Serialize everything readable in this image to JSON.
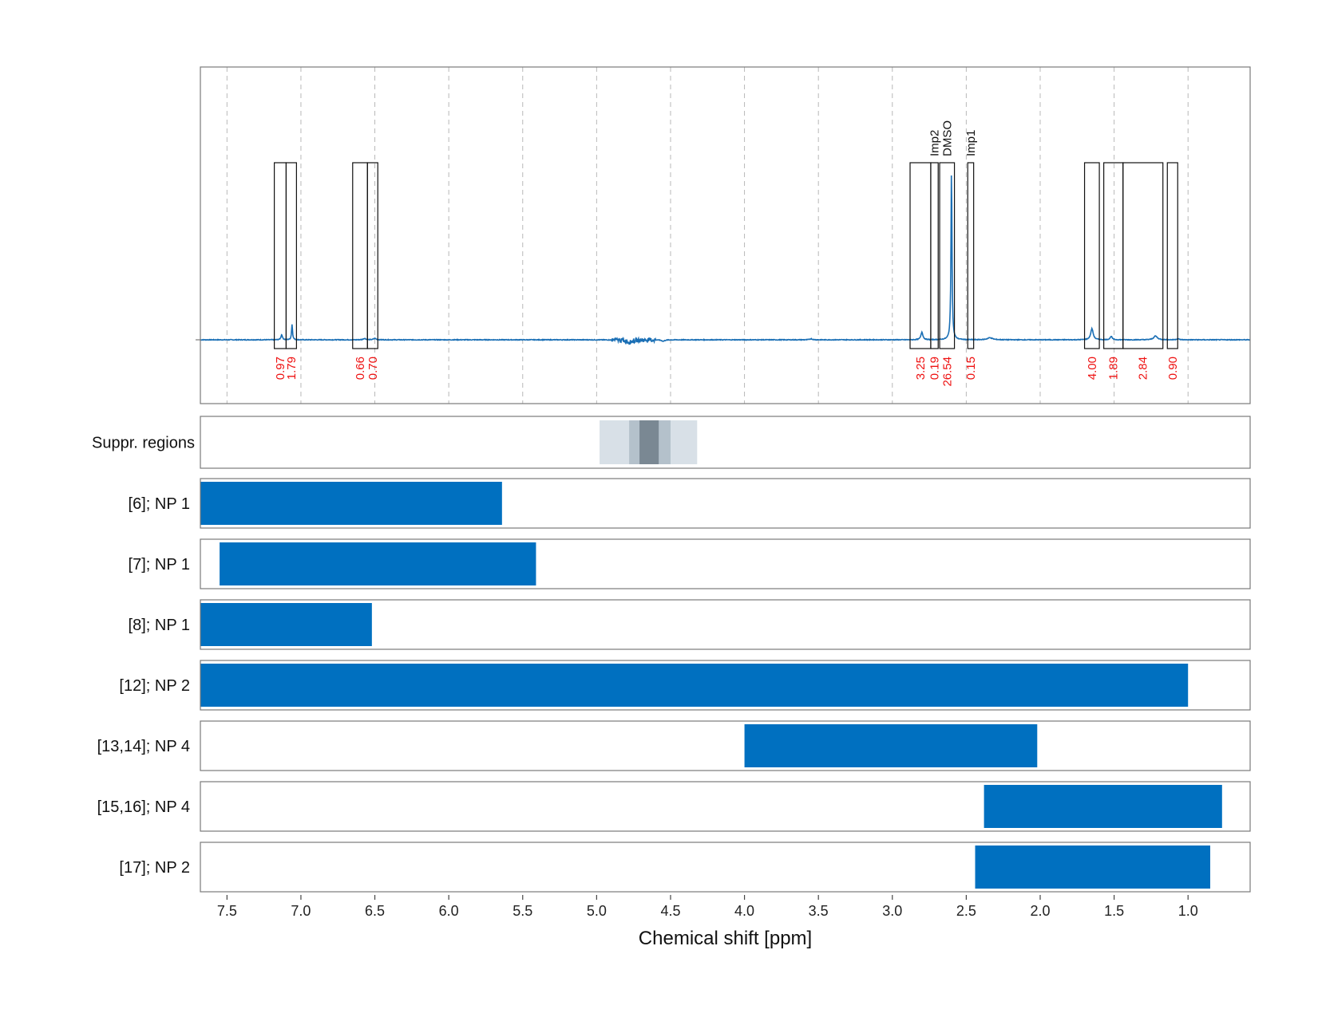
{
  "chart_data": {
    "type": "line",
    "xlabel": "Chemical shift [ppm]",
    "xlim": [
      7.68,
      0.58
    ],
    "x_reversed": true,
    "x_ticks": [
      7.5,
      7.0,
      6.5,
      6.0,
      5.5,
      5.0,
      4.5,
      4.0,
      3.5,
      3.0,
      2.5,
      2.0,
      1.5,
      1.0
    ],
    "x_tick_labels": [
      "7.5",
      "7.0",
      "6.5",
      "6.0",
      "5.5",
      "5.0",
      "4.5",
      "4.0",
      "3.5",
      "3.0",
      "2.5",
      "2.0",
      "1.5",
      "1.0"
    ],
    "grid": true,
    "spectrum": {
      "baseline": 0,
      "peaks": [
        {
          "ppm": 7.13,
          "height": 0.03,
          "width": 0.006
        },
        {
          "ppm": 7.06,
          "height": 0.09,
          "width": 0.004
        },
        {
          "ppm": 6.57,
          "height": 0.008,
          "width": 0.01
        },
        {
          "ppm": 6.5,
          "height": 0.008,
          "width": 0.01
        },
        {
          "ppm": 4.78,
          "height": -0.012,
          "width": 0.03
        },
        {
          "ppm": 4.55,
          "height": -0.008,
          "width": 0.012
        },
        {
          "ppm": 3.55,
          "height": 0.006,
          "width": 0.01
        },
        {
          "ppm": 2.8,
          "height": 0.045,
          "width": 0.008
        },
        {
          "ppm": 2.6,
          "height": 1.0,
          "width": 0.004
        },
        {
          "ppm": 2.34,
          "height": 0.012,
          "width": 0.02
        },
        {
          "ppm": 1.65,
          "height": 0.065,
          "width": 0.01
        },
        {
          "ppm": 1.52,
          "height": 0.02,
          "width": 0.008
        },
        {
          "ppm": 1.22,
          "height": 0.022,
          "width": 0.015
        },
        {
          "ppm": 1.07,
          "height": 0.006,
          "width": 0.01
        }
      ]
    },
    "integration_regions": [
      {
        "start": 7.18,
        "end": 7.1,
        "integral": "0.97",
        "name": ""
      },
      {
        "start": 7.1,
        "end": 7.03,
        "integral": "1.79",
        "name": ""
      },
      {
        "start": 6.65,
        "end": 6.55,
        "integral": "0.66",
        "name": ""
      },
      {
        "start": 6.55,
        "end": 6.48,
        "integral": "0.70",
        "name": ""
      },
      {
        "start": 2.88,
        "end": 2.74,
        "integral": "3.25",
        "name": ""
      },
      {
        "start": 2.74,
        "end": 2.69,
        "integral": "0.19",
        "name": "Imp2"
      },
      {
        "start": 2.68,
        "end": 2.58,
        "integral": "26.54",
        "name": "DMSO"
      },
      {
        "start": 2.49,
        "end": 2.45,
        "integral": "0.15",
        "name": "Imp1"
      },
      {
        "start": 1.7,
        "end": 1.6,
        "integral": "4.00",
        "name": ""
      },
      {
        "start": 1.57,
        "end": 1.44,
        "integral": "1.89",
        "name": ""
      },
      {
        "start": 1.44,
        "end": 1.17,
        "integral": "2.84",
        "name": ""
      },
      {
        "start": 1.14,
        "end": 1.07,
        "integral": "0.90",
        "name": ""
      }
    ],
    "suppression_regions": {
      "label": "Suppr. regions",
      "bands": [
        {
          "start": 4.98,
          "end": 4.32,
          "color": "#d8e0e7"
        },
        {
          "start": 4.78,
          "end": 4.5,
          "color": "#b4c1cb"
        },
        {
          "start": 4.71,
          "end": 4.58,
          "color": "#7a8893"
        }
      ]
    },
    "bars": [
      {
        "label": "[6]; NP 1",
        "start": 7.68,
        "end": 5.64
      },
      {
        "label": "[7]; NP 1",
        "start": 7.55,
        "end": 5.41
      },
      {
        "label": "[8]; NP 1",
        "start": 7.68,
        "end": 6.52
      },
      {
        "label": "[12]; NP 2",
        "start": 7.68,
        "end": 1.0
      },
      {
        "label": "[13,14]; NP 4",
        "start": 4.0,
        "end": 2.02
      },
      {
        "label": "[15,16]; NP 4",
        "start": 2.38,
        "end": 0.77
      },
      {
        "label": "[17]; NP 2",
        "start": 2.44,
        "end": 0.85
      }
    ],
    "colors": {
      "spectrum": "#1a6fb5",
      "bar": "#0070c0",
      "integral_text": "#ee1111",
      "region_box": "#111111"
    }
  }
}
